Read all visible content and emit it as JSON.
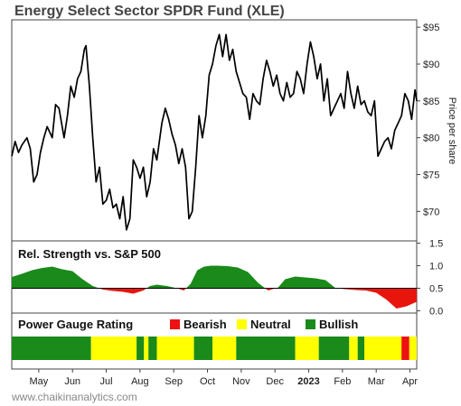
{
  "chart_data": {
    "type": "line",
    "title": "Energy Select Sector SPDR Fund (XLE)",
    "ylabel": "Price per share",
    "ylim": [
      66,
      96
    ],
    "yticks": [
      "$70",
      "$75",
      "$80",
      "$85",
      "$90",
      "$95"
    ],
    "ytick_values": [
      70,
      75,
      80,
      85,
      90,
      95
    ],
    "xrange": [
      0,
      12
    ],
    "months": [
      "May",
      "Jun",
      "Jul",
      "Aug",
      "Sep",
      "Oct",
      "Nov",
      "Dec",
      "2023",
      "Feb",
      "Mar",
      "Apr"
    ],
    "month_positions": [
      0.8,
      1.8,
      2.8,
      3.8,
      4.8,
      5.8,
      6.8,
      7.8,
      8.8,
      9.8,
      10.8,
      11.8
    ],
    "price": {
      "x": [
        0.0,
        0.1,
        0.2,
        0.3,
        0.45,
        0.55,
        0.65,
        0.75,
        0.85,
        0.95,
        1.05,
        1.2,
        1.3,
        1.4,
        1.55,
        1.65,
        1.75,
        1.85,
        1.95,
        2.05,
        2.15,
        2.2,
        2.3,
        2.4,
        2.5,
        2.6,
        2.7,
        2.8,
        2.9,
        3.0,
        3.1,
        3.2,
        3.3,
        3.4,
        3.5,
        3.6,
        3.7,
        3.8,
        3.9,
        4.0,
        4.1,
        4.2,
        4.3,
        4.45,
        4.55,
        4.65,
        4.75,
        4.85,
        4.95,
        5.05,
        5.15,
        5.25,
        5.35,
        5.45,
        5.55,
        5.65,
        5.75,
        5.85,
        5.95,
        6.05,
        6.15,
        6.25,
        6.35,
        6.45,
        6.55,
        6.65,
        6.75,
        6.85,
        6.95,
        7.05,
        7.15,
        7.25,
        7.35,
        7.45,
        7.55,
        7.65,
        7.75,
        7.85,
        7.95,
        8.05,
        8.15,
        8.25,
        8.35,
        8.45,
        8.55,
        8.65,
        8.75,
        8.85,
        8.95,
        9.05,
        9.15,
        9.25,
        9.35,
        9.45,
        9.55,
        9.65,
        9.75,
        9.85,
        9.95,
        10.05,
        10.15,
        10.25,
        10.35,
        10.45,
        10.55,
        10.65,
        10.75,
        10.85,
        10.95,
        11.05,
        11.15,
        11.25,
        11.35,
        11.45,
        11.55,
        11.65,
        11.75,
        11.85,
        11.95,
        12.0
      ],
      "y": [
        77.5,
        79.5,
        78.0,
        79.0,
        80.0,
        78.5,
        74.0,
        75.0,
        78.0,
        80.0,
        81.5,
        80.0,
        84.5,
        84.0,
        80.0,
        83.0,
        87.0,
        85.5,
        88.0,
        89.0,
        92.0,
        92.5,
        87.0,
        80.0,
        74.0,
        76.0,
        71.0,
        71.5,
        73.0,
        70.5,
        71.0,
        69.0,
        72.0,
        67.5,
        69.0,
        77.0,
        76.0,
        74.5,
        76.0,
        72.0,
        74.0,
        78.5,
        77.0,
        82.0,
        84.0,
        82.5,
        80.5,
        79.0,
        76.5,
        78.5,
        76.0,
        69.0,
        70.0,
        76.0,
        83.0,
        80.0,
        83.0,
        88.5,
        90.0,
        92.5,
        94.0,
        91.0,
        94.0,
        90.5,
        92.0,
        89.0,
        87.5,
        86.0,
        85.5,
        82.5,
        86.0,
        85.0,
        84.5,
        88.0,
        90.5,
        89.0,
        87.0,
        88.5,
        86.0,
        85.0,
        87.5,
        85.5,
        86.0,
        89.0,
        88.0,
        86.0,
        90.0,
        93.0,
        91.0,
        88.0,
        90.0,
        85.0,
        88.0,
        83.0,
        84.0,
        85.0,
        86.0,
        84.0,
        89.0,
        86.0,
        84.0,
        87.0,
        84.5,
        85.0,
        83.5,
        83.0,
        85.0,
        77.5,
        78.5,
        79.5,
        80.0,
        78.5,
        81.0,
        82.0,
        83.0,
        86.0,
        85.0,
        82.5,
        86.5,
        85.0
      ]
    },
    "rel_strength": {
      "title": "Rel. Strength vs. S&P 500",
      "yticks": [
        "1.5",
        "1.0",
        "0.5",
        "0.0"
      ],
      "ytick_values": [
        1.5,
        1.0,
        0.5,
        0.0
      ],
      "ylim": [
        -0.05,
        1.55
      ],
      "baseline": 0.5,
      "colors": {
        "above": "#1a8a1a",
        "below": "#e8150d"
      },
      "x": [
        0.0,
        0.3,
        0.6,
        0.9,
        1.2,
        1.5,
        1.8,
        2.1,
        2.4,
        2.7,
        3.0,
        3.3,
        3.6,
        3.9,
        4.1,
        4.3,
        4.6,
        4.9,
        5.1,
        5.3,
        5.5,
        5.7,
        5.9,
        6.1,
        6.4,
        6.7,
        7.0,
        7.3,
        7.6,
        7.9,
        8.1,
        8.4,
        8.7,
        9.0,
        9.3,
        9.6,
        9.9,
        10.2,
        10.5,
        10.8,
        11.1,
        11.4,
        11.7,
        12.0
      ],
      "values": [
        0.75,
        0.82,
        0.9,
        0.95,
        0.98,
        0.92,
        0.88,
        0.7,
        0.55,
        0.47,
        0.44,
        0.42,
        0.38,
        0.45,
        0.55,
        0.58,
        0.55,
        0.5,
        0.45,
        0.6,
        0.9,
        0.98,
        1.0,
        1.0,
        0.99,
        0.96,
        0.86,
        0.62,
        0.45,
        0.52,
        0.7,
        0.76,
        0.74,
        0.72,
        0.68,
        0.5,
        0.48,
        0.46,
        0.45,
        0.4,
        0.25,
        0.05,
        0.1,
        0.2
      ]
    },
    "power_gauge": {
      "title": "Power Gauge Rating",
      "legend": [
        {
          "label": "Bearish",
          "color": "#ee1111"
        },
        {
          "label": "Neutral",
          "color": "#ffff00"
        },
        {
          "label": "Bullish",
          "color": "#1a8a1a"
        }
      ],
      "segments": [
        {
          "start": 0.0,
          "end": 2.35,
          "rating": "Bullish"
        },
        {
          "start": 2.35,
          "end": 3.7,
          "rating": "Neutral"
        },
        {
          "start": 3.7,
          "end": 3.92,
          "rating": "Bullish"
        },
        {
          "start": 3.92,
          "end": 4.05,
          "rating": "Neutral"
        },
        {
          "start": 4.05,
          "end": 4.3,
          "rating": "Bullish"
        },
        {
          "start": 4.3,
          "end": 5.4,
          "rating": "Neutral"
        },
        {
          "start": 5.4,
          "end": 5.95,
          "rating": "Bullish"
        },
        {
          "start": 5.95,
          "end": 6.65,
          "rating": "Neutral"
        },
        {
          "start": 6.65,
          "end": 8.4,
          "rating": "Bullish"
        },
        {
          "start": 8.4,
          "end": 9.1,
          "rating": "Neutral"
        },
        {
          "start": 9.1,
          "end": 10.0,
          "rating": "Bullish"
        },
        {
          "start": 10.0,
          "end": 10.25,
          "rating": "Neutral"
        },
        {
          "start": 10.25,
          "end": 10.45,
          "rating": "Bullish"
        },
        {
          "start": 10.45,
          "end": 11.55,
          "rating": "Neutral"
        },
        {
          "start": 11.55,
          "end": 11.78,
          "rating": "Bearish"
        },
        {
          "start": 11.78,
          "end": 12.0,
          "rating": "Neutral"
        }
      ]
    }
  },
  "footer": {
    "source": "www.chaikinanalytics.com"
  }
}
